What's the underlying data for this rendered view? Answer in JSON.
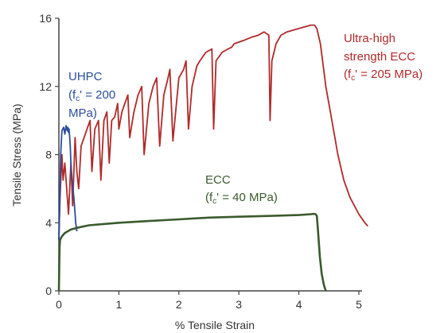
{
  "chart_data": {
    "type": "line",
    "title": "",
    "xlabel": "% Tensile Strain",
    "ylabel": "Tensile Stress (MPa)",
    "xlim": [
      0,
      5
    ],
    "ylim": [
      0,
      16
    ],
    "xticks": [
      "0",
      "1",
      "2",
      "3",
      "4",
      "5"
    ],
    "yticks": [
      "0",
      "4",
      "8",
      "12",
      "16"
    ],
    "grid": false,
    "legend": "none",
    "series": [
      {
        "color": "#b02a2a",
        "x": [
          0.0,
          0.02,
          0.05,
          0.07,
          0.1,
          0.13,
          0.16,
          0.2,
          0.23,
          0.27,
          0.3,
          0.33,
          0.37,
          0.42,
          0.47,
          0.52,
          0.55,
          0.6,
          0.66,
          0.7,
          0.75,
          0.8,
          0.84,
          0.88,
          0.93,
          0.98,
          1.0,
          1.05,
          1.1,
          1.15,
          1.18,
          1.25,
          1.32,
          1.38,
          1.42,
          1.5,
          1.57,
          1.63,
          1.68,
          1.75,
          1.82,
          1.85,
          1.9,
          2.0,
          2.08,
          2.12,
          2.16,
          2.22,
          2.3,
          2.35,
          2.45,
          2.55,
          2.58,
          2.62,
          2.72,
          2.82,
          2.88,
          2.92,
          3.0,
          3.08,
          3.15,
          3.22,
          3.32,
          3.42,
          3.5,
          3.52,
          3.55,
          3.62,
          3.7,
          3.8,
          3.9,
          4.0,
          4.1,
          4.2,
          4.26,
          4.3,
          4.36,
          4.45,
          4.55,
          4.65,
          4.75,
          4.85,
          5.0,
          5.1,
          5.15
        ],
        "y": [
          3.0,
          5.5,
          8.0,
          6.5,
          7.5,
          6.0,
          4.5,
          7.5,
          5.0,
          9.0,
          7.0,
          6.0,
          8.5,
          9.0,
          9.5,
          10.0,
          7.0,
          9.5,
          10.0,
          6.5,
          10.0,
          10.5,
          7.5,
          10.0,
          10.2,
          11.0,
          9.5,
          10.5,
          11.0,
          11.5,
          9.0,
          10.5,
          11.5,
          12.0,
          8.0,
          11.0,
          12.0,
          12.5,
          8.5,
          11.5,
          12.5,
          13.0,
          8.8,
          12.5,
          13.0,
          13.5,
          9.5,
          12.0,
          13.2,
          13.5,
          14.0,
          14.2,
          9.5,
          13.5,
          14.0,
          14.2,
          14.3,
          14.5,
          14.6,
          14.7,
          14.8,
          14.9,
          15.0,
          15.2,
          15.0,
          10.0,
          13.5,
          14.5,
          15.0,
          15.2,
          15.3,
          15.4,
          15.5,
          15.6,
          15.6,
          15.4,
          14.5,
          12.0,
          10.0,
          8.0,
          6.5,
          5.5,
          4.5,
          4.0,
          3.8
        ]
      },
      {
        "color": "#2a4e9c",
        "x": [
          0.0,
          0.03,
          0.05,
          0.08,
          0.1,
          0.12,
          0.14,
          0.15,
          0.16,
          0.17,
          0.18,
          0.19,
          0.2,
          0.22,
          0.25,
          0.27,
          0.28,
          0.3
        ],
        "y": [
          3.0,
          8.0,
          9.4,
          9.6,
          9.2,
          9.7,
          9.4,
          9.6,
          9.3,
          9.5,
          9.0,
          8.5,
          7.5,
          6.5,
          5.5,
          4.5,
          4.0,
          3.5
        ]
      },
      {
        "color": "#3b5a2e",
        "x": [
          0.0,
          0.01,
          0.02,
          0.05,
          0.1,
          0.2,
          0.3,
          0.5,
          1.0,
          1.5,
          2.0,
          2.5,
          3.0,
          3.5,
          4.0,
          4.2,
          4.25,
          4.28,
          4.3,
          4.32,
          4.35,
          4.38,
          4.42,
          4.45
        ],
        "y": [
          0.0,
          2.5,
          3.0,
          3.2,
          3.4,
          3.6,
          3.7,
          3.85,
          4.0,
          4.1,
          4.2,
          4.3,
          4.35,
          4.4,
          4.45,
          4.5,
          4.52,
          4.5,
          4.4,
          3.5,
          2.0,
          1.0,
          0.3,
          0.0
        ]
      }
    ],
    "annotations": [
      {
        "lines": [
          "Ultra-high",
          "strength ECC",
          "(f_c' = 205 MPa)"
        ],
        "color": "#b02a2a"
      },
      {
        "lines": [
          "UHPC",
          "(f_c' = 200",
          "MPa)"
        ],
        "color": "#2a4e9c"
      },
      {
        "lines": [
          "ECC",
          "(f_c' = 40 MPa)"
        ],
        "color": "#3b5a2e"
      }
    ]
  }
}
